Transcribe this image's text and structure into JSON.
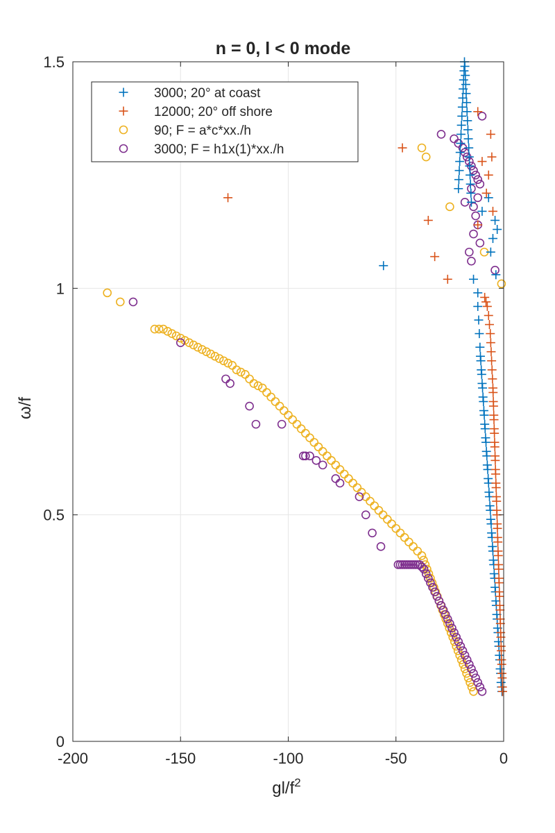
{
  "chart_data": {
    "type": "scatter",
    "title": "n = 0, l < 0 mode",
    "xlabel": "gl/f",
    "xlabel_superscript": "2",
    "ylabel": "ω/f",
    "xlim": [
      -200,
      0
    ],
    "ylim": [
      0,
      1.5
    ],
    "xticks": [
      -200,
      -150,
      -100,
      -50,
      0
    ],
    "xtick_labels": [
      "-200",
      "-150",
      "-100",
      "-50",
      "0"
    ],
    "yticks": [
      0,
      0.5,
      1,
      1.5
    ],
    "ytick_labels": [
      "0",
      "0.5",
      "1",
      "1.5"
    ],
    "grid": true,
    "legend_location": "upper-left",
    "series": [
      {
        "name": "3000; 20° at coast",
        "marker": "plus",
        "color": "#0072BD",
        "x": [
          -0.8,
          -1.0,
          -1.2,
          -1.4,
          -1.6,
          -1.8,
          -2.0,
          -2.2,
          -2.4,
          -2.6,
          -2.8,
          -3.0,
          -3.2,
          -3.4,
          -3.6,
          -3.8,
          -4.0,
          -4.2,
          -4.4,
          -4.6,
          -4.8,
          -5.0,
          -5.2,
          -5.4,
          -5.6,
          -5.8,
          -6.0,
          -6.2,
          -6.4,
          -6.6,
          -6.8,
          -7.0,
          -7.2,
          -7.4,
          -7.6,
          -7.8,
          -8.0,
          -8.2,
          -8.4,
          -8.6,
          -8.8,
          -9.0,
          -9.2,
          -9.4,
          -9.6,
          -9.8,
          -10.0,
          -10.2,
          -10.4,
          -10.6,
          -10.8,
          -11.0,
          -11.3,
          -11.6,
          -12.0,
          -15.0,
          -15.2,
          -15.4,
          -15.6,
          -15.8,
          -16.0,
          -16.2,
          -16.4,
          -16.6,
          -16.8,
          -17.0,
          -17.2,
          -17.4,
          -17.6,
          -17.8,
          -18.0,
          -18.2,
          -18.4,
          -18.6,
          -18.8,
          -19.0,
          -19.2,
          -19.4,
          -19.6,
          -19.8,
          -20.0,
          -20.2,
          -20.4,
          -20.6,
          -20.8,
          -21.0,
          -55.8,
          -14.0,
          -12.0,
          -10.0,
          -7.0,
          -6.0,
          -5.0,
          -4.0,
          -3.6,
          -3.0
        ],
        "y": [
          0.11,
          0.12,
          0.13,
          0.15,
          0.16,
          0.18,
          0.19,
          0.21,
          0.22,
          0.24,
          0.25,
          0.27,
          0.28,
          0.3,
          0.31,
          0.33,
          0.34,
          0.36,
          0.37,
          0.39,
          0.4,
          0.42,
          0.43,
          0.45,
          0.46,
          0.48,
          0.49,
          0.51,
          0.52,
          0.54,
          0.55,
          0.57,
          0.58,
          0.6,
          0.61,
          0.63,
          0.64,
          0.66,
          0.67,
          0.69,
          0.7,
          0.72,
          0.73,
          0.75,
          0.76,
          0.78,
          0.79,
          0.81,
          0.82,
          0.84,
          0.85,
          0.87,
          0.9,
          0.93,
          0.96,
          1.19,
          1.21,
          1.23,
          1.25,
          1.27,
          1.29,
          1.31,
          1.33,
          1.35,
          1.37,
          1.39,
          1.41,
          1.43,
          1.45,
          1.47,
          1.49,
          1.5,
          1.48,
          1.46,
          1.44,
          1.42,
          1.4,
          1.38,
          1.36,
          1.34,
          1.32,
          1.3,
          1.28,
          1.26,
          1.24,
          1.22,
          1.05,
          1.02,
          0.99,
          1.17,
          1.2,
          1.08,
          1.11,
          1.15,
          1.03,
          1.13
        ]
      },
      {
        "name": "12000; 20° off shore",
        "marker": "plus",
        "color": "#D95319",
        "x": [
          -0.5,
          -0.6,
          -0.7,
          -0.8,
          -0.9,
          -1.0,
          -1.1,
          -1.2,
          -1.3,
          -1.4,
          -1.5,
          -1.6,
          -1.7,
          -1.8,
          -1.9,
          -2.0,
          -2.1,
          -2.2,
          -2.3,
          -2.4,
          -2.5,
          -2.6,
          -2.7,
          -2.8,
          -2.9,
          -3.0,
          -3.1,
          -3.2,
          -3.3,
          -3.4,
          -3.5,
          -3.6,
          -3.7,
          -3.8,
          -3.9,
          -4.0,
          -4.1,
          -4.2,
          -4.3,
          -4.4,
          -4.5,
          -4.6,
          -4.7,
          -4.8,
          -4.9,
          -5.0,
          -5.2,
          -5.4,
          -5.6,
          -5.8,
          -6.0,
          -6.2,
          -6.6,
          -7.0,
          -7.6,
          -8.2,
          -8.8,
          -12.0,
          -47.0,
          -128.0,
          -35.0,
          -32.0,
          -26.0,
          -10.0,
          -6.0,
          -5.5,
          -7.0,
          -8.0,
          -12.0,
          -5.0
        ],
        "y": [
          0.11,
          0.12,
          0.14,
          0.15,
          0.17,
          0.18,
          0.2,
          0.21,
          0.23,
          0.24,
          0.26,
          0.27,
          0.29,
          0.3,
          0.32,
          0.33,
          0.35,
          0.36,
          0.38,
          0.39,
          0.41,
          0.42,
          0.44,
          0.45,
          0.47,
          0.48,
          0.5,
          0.51,
          0.53,
          0.54,
          0.56,
          0.57,
          0.59,
          0.6,
          0.62,
          0.63,
          0.65,
          0.66,
          0.68,
          0.69,
          0.71,
          0.72,
          0.74,
          0.75,
          0.77,
          0.78,
          0.8,
          0.82,
          0.84,
          0.86,
          0.88,
          0.9,
          0.92,
          0.94,
          0.96,
          0.97,
          0.98,
          1.39,
          1.31,
          1.2,
          1.15,
          1.07,
          1.02,
          1.28,
          1.34,
          1.29,
          1.25,
          1.21,
          1.14,
          1.17
        ]
      },
      {
        "name": "90; F = a*c*xx./h",
        "marker": "circle",
        "color": "#EDB120",
        "x": [
          -14.0,
          -14.8,
          -15.6,
          -16.4,
          -17.2,
          -18.0,
          -18.8,
          -19.6,
          -20.4,
          -21.2,
          -22.0,
          -22.8,
          -23.6,
          -24.4,
          -25.2,
          -26.0,
          -26.8,
          -27.6,
          -28.4,
          -29.2,
          -30.0,
          -30.8,
          -31.6,
          -32.4,
          -33.2,
          -34.0,
          -34.8,
          -35.6,
          -36.4,
          -37.2,
          -38.0,
          -40.0,
          -42.0,
          -44.0,
          -46.0,
          -48.0,
          -50.0,
          -52.0,
          -54.0,
          -56.0,
          -58.0,
          -60.0,
          -62.0,
          -64.0,
          -66.0,
          -68.0,
          -70.0,
          -72.0,
          -74.0,
          -76.0,
          -78.0,
          -80.0,
          -82.0,
          -84.0,
          -86.0,
          -88.0,
          -90.0,
          -92.0,
          -94.0,
          -96.0,
          -98.0,
          -100.0,
          -102.0,
          -104.0,
          -106.0,
          -108.0,
          -110.0,
          -112.0,
          -114.0,
          -116.0,
          -118.0,
          -120.0,
          -122.0,
          -124.0,
          -126.0,
          -128.0,
          -130.0,
          -132.0,
          -134.0,
          -136.0,
          -138.0,
          -140.0,
          -142.0,
          -144.0,
          -146.0,
          -148.0,
          -150.0,
          -152.0,
          -154.0,
          -156.0,
          -158.0,
          -160.0,
          -162.0,
          -178.0,
          -184.0,
          -38.0,
          -36.0,
          -25.0,
          -9.0,
          -1.0
        ],
        "y": [
          0.11,
          0.12,
          0.13,
          0.14,
          0.15,
          0.16,
          0.17,
          0.18,
          0.19,
          0.2,
          0.21,
          0.22,
          0.23,
          0.24,
          0.25,
          0.26,
          0.27,
          0.28,
          0.29,
          0.3,
          0.31,
          0.32,
          0.33,
          0.34,
          0.35,
          0.36,
          0.37,
          0.38,
          0.39,
          0.4,
          0.41,
          0.42,
          0.43,
          0.44,
          0.45,
          0.46,
          0.47,
          0.48,
          0.49,
          0.5,
          0.51,
          0.52,
          0.53,
          0.54,
          0.55,
          0.56,
          0.57,
          0.58,
          0.59,
          0.6,
          0.61,
          0.62,
          0.63,
          0.64,
          0.65,
          0.66,
          0.67,
          0.68,
          0.69,
          0.7,
          0.71,
          0.72,
          0.73,
          0.74,
          0.75,
          0.76,
          0.77,
          0.78,
          0.785,
          0.79,
          0.8,
          0.81,
          0.815,
          0.82,
          0.83,
          0.835,
          0.84,
          0.845,
          0.85,
          0.855,
          0.86,
          0.865,
          0.87,
          0.875,
          0.88,
          0.885,
          0.89,
          0.895,
          0.9,
          0.905,
          0.91,
          0.91,
          0.91,
          0.97,
          0.99,
          1.31,
          1.29,
          1.18,
          1.08,
          1.01
        ]
      },
      {
        "name": "3000; F = h1x(1)*xx./h",
        "marker": "circle",
        "color": "#7E2F8E",
        "x": [
          -10.0,
          -11.0,
          -12.0,
          -13.0,
          -14.0,
          -15.0,
          -16.0,
          -17.0,
          -18.0,
          -19.0,
          -20.0,
          -21.0,
          -22.0,
          -23.0,
          -24.0,
          -25.0,
          -26.0,
          -27.0,
          -28.0,
          -29.0,
          -30.0,
          -31.0,
          -32.0,
          -33.0,
          -34.0,
          -35.0,
          -36.0,
          -37.0,
          -38.0,
          -39.0,
          -40.0,
          -41.0,
          -42.0,
          -43.0,
          -44.0,
          -45.0,
          -46.0,
          -47.0,
          -48.0,
          -49.0,
          -57.0,
          -61.0,
          -64.0,
          -67.0,
          -76.0,
          -78.0,
          -84.0,
          -87.0,
          -90.0,
          -92.0,
          -93.0,
          -103.0,
          -115.0,
          -118.0,
          -127.0,
          -129.0,
          -150.0,
          -172.0,
          -29.0,
          -23.0,
          -21.0,
          -19.0,
          -18.0,
          -17.0,
          -16.0,
          -15.0,
          -14.0,
          -13.0,
          -12.0,
          -11.0,
          -10.0,
          -15.0,
          -18.0,
          -14.0,
          -13.0,
          -12.0,
          -14.0,
          -11.0,
          -16.0,
          -15.0,
          -12.0,
          -4.0
        ],
        "y": [
          0.11,
          0.12,
          0.13,
          0.14,
          0.15,
          0.16,
          0.17,
          0.18,
          0.19,
          0.2,
          0.21,
          0.22,
          0.23,
          0.24,
          0.25,
          0.26,
          0.27,
          0.28,
          0.29,
          0.3,
          0.31,
          0.32,
          0.33,
          0.34,
          0.35,
          0.36,
          0.37,
          0.38,
          0.385,
          0.39,
          0.39,
          0.39,
          0.39,
          0.39,
          0.39,
          0.39,
          0.39,
          0.39,
          0.39,
          0.39,
          0.43,
          0.46,
          0.5,
          0.54,
          0.57,
          0.58,
          0.61,
          0.62,
          0.63,
          0.63,
          0.63,
          0.7,
          0.7,
          0.74,
          0.79,
          0.8,
          0.88,
          0.97,
          1.34,
          1.33,
          1.32,
          1.31,
          1.3,
          1.29,
          1.28,
          1.27,
          1.26,
          1.25,
          1.24,
          1.23,
          1.38,
          1.22,
          1.19,
          1.18,
          1.16,
          1.14,
          1.12,
          1.1,
          1.08,
          1.06,
          1.2,
          1.04
        ]
      }
    ]
  }
}
